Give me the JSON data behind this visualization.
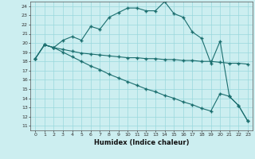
{
  "xlabel": "Humidex (Indice chaleur)",
  "bg_color": "#cceef0",
  "grid_color": "#99d8dc",
  "line_color": "#1a6e6e",
  "xlim": [
    -0.5,
    23.5
  ],
  "ylim": [
    10.5,
    24.5
  ],
  "xticks": [
    0,
    1,
    2,
    3,
    4,
    5,
    6,
    7,
    8,
    9,
    10,
    11,
    12,
    13,
    14,
    15,
    16,
    17,
    18,
    19,
    20,
    21,
    22,
    23
  ],
  "yticks": [
    11,
    12,
    13,
    14,
    15,
    16,
    17,
    18,
    19,
    20,
    21,
    22,
    23,
    24
  ],
  "line1_x": [
    0,
    1,
    2,
    3,
    4,
    5,
    6,
    7,
    8,
    9,
    10,
    11,
    12,
    13,
    14,
    15,
    16,
    17,
    18,
    19,
    20,
    21,
    22,
    23
  ],
  "line1_y": [
    18.3,
    19.8,
    19.5,
    20.3,
    20.7,
    20.3,
    21.8,
    21.5,
    22.8,
    23.3,
    23.8,
    23.8,
    23.5,
    23.5,
    24.5,
    23.2,
    22.8,
    21.2,
    20.5,
    17.8,
    20.2,
    14.2,
    13.2,
    11.5
  ],
  "line2_x": [
    0,
    1,
    2,
    3,
    4,
    5,
    6,
    7,
    8,
    9,
    10,
    11,
    12,
    13,
    14,
    15,
    16,
    17,
    18,
    19,
    20,
    21,
    22,
    23
  ],
  "line2_y": [
    18.3,
    19.8,
    19.5,
    19.3,
    19.1,
    18.9,
    18.8,
    18.7,
    18.6,
    18.5,
    18.4,
    18.4,
    18.3,
    18.3,
    18.2,
    18.2,
    18.1,
    18.1,
    18.0,
    18.0,
    17.9,
    17.8,
    17.8,
    17.7
  ],
  "line3_x": [
    0,
    1,
    2,
    3,
    4,
    5,
    6,
    7,
    8,
    9,
    10,
    11,
    12,
    13,
    14,
    15,
    16,
    17,
    18,
    19,
    20,
    21,
    22,
    23
  ],
  "line3_y": [
    18.3,
    19.8,
    19.5,
    19.0,
    18.5,
    18.0,
    17.5,
    17.1,
    16.6,
    16.2,
    15.8,
    15.4,
    15.0,
    14.7,
    14.3,
    14.0,
    13.6,
    13.3,
    12.9,
    12.6,
    14.5,
    14.2,
    13.2,
    11.5
  ]
}
